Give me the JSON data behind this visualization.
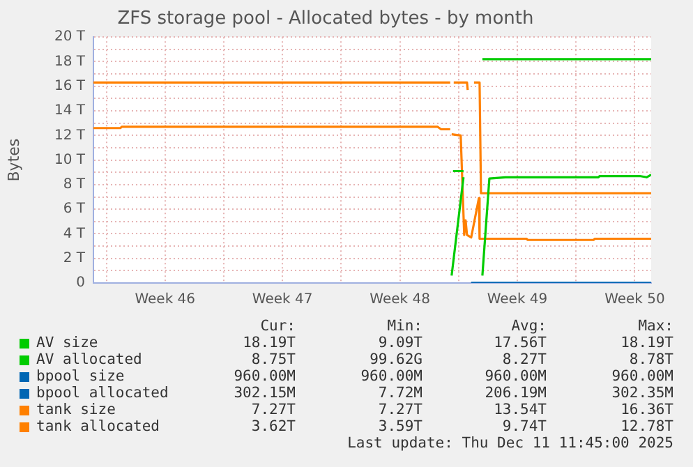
{
  "chart_data": {
    "type": "line",
    "title": "ZFS storage pool - Allocated bytes - by month",
    "ylabel": "Bytes",
    "xlim": [
      "2025-11-09T05:30",
      "2025-12-12T11:30"
    ],
    "xticks": [
      {
        "value": "2025-11-13T12:00",
        "label": "Week 46"
      },
      {
        "value": "2025-11-20T12:00",
        "label": "Week 47"
      },
      {
        "value": "2025-11-27T12:00",
        "label": "Week 48"
      },
      {
        "value": "2025-12-04T12:00",
        "label": "Week 49"
      },
      {
        "value": "2025-12-11T12:00",
        "label": "Week 50"
      },
      {
        "value": "2025-11-10T00:00",
        "label": null
      },
      {
        "value": "2025-11-17T00:00",
        "label": null
      },
      {
        "value": "2025-11-24T00:00",
        "label": null
      },
      {
        "value": "2025-12-01T00:00",
        "label": null
      },
      {
        "value": "2025-12-08T00:00",
        "label": null
      }
    ],
    "ylim": [
      0,
      20
    ],
    "yticks": [
      {
        "value": 0,
        "label": "0"
      },
      {
        "value": 2,
        "label": "2 T"
      },
      {
        "value": 4,
        "label": "4 T"
      },
      {
        "value": 6,
        "label": "6 T"
      },
      {
        "value": 8,
        "label": "8 T"
      },
      {
        "value": 10,
        "label": "10 T"
      },
      {
        "value": 12,
        "label": "12 T"
      },
      {
        "value": 14,
        "label": "14 T"
      },
      {
        "value": 16,
        "label": "16 T"
      },
      {
        "value": 18,
        "label": "18 T"
      },
      {
        "value": 20,
        "label": "20 T"
      },
      {
        "value": 1,
        "label": null
      },
      {
        "value": 3,
        "label": null
      },
      {
        "value": 5,
        "label": null
      },
      {
        "value": 7,
        "label": null
      },
      {
        "value": 9,
        "label": null
      },
      {
        "value": 11,
        "label": null
      },
      {
        "value": 13,
        "label": null
      },
      {
        "value": 15,
        "label": null
      },
      {
        "value": 17,
        "label": null
      },
      {
        "value": 19,
        "label": null
      }
    ],
    "grid": true,
    "legend": "bottom",
    "marker": "none",
    "line_style": "solid",
    "series": [
      {
        "name": "AV size",
        "color": "#00cc00",
        "x": [
          "2025-11-30T16:00",
          "2025-12-01T07:00",
          "2025-12-01T08:00",
          "2025-12-02T10:00",
          "2025-12-12T11:30"
        ],
        "values": [
          9.1,
          9.1,
          null,
          18.2,
          18.2
        ]
      },
      {
        "name": "AV allocated",
        "color": "#00cc00",
        "x": [
          "2025-11-30T14:00",
          "2025-12-01T07:00",
          "2025-12-01T08:00",
          "2025-12-02T10:00",
          "2025-12-02T20:00",
          "2025-12-03T19:00",
          "2025-12-09T08:00",
          "2025-12-09T10:00",
          "2025-12-11T19:00",
          "2025-12-12T05:00",
          "2025-12-12T11:30"
        ],
        "values": [
          0.6,
          8.6,
          null,
          0.6,
          8.5,
          8.6,
          8.6,
          8.7,
          8.7,
          8.6,
          8.8
        ]
      },
      {
        "name": "bpool size",
        "color": "#0066b3",
        "x": [
          "2025-12-01T18:00",
          "2025-12-12T11:30"
        ],
        "values": [
          0,
          0
        ]
      },
      {
        "name": "bpool allocated",
        "color": "#0066b3",
        "x": [
          "2025-12-01T18:00",
          "2025-12-12T11:30"
        ],
        "values": [
          0,
          0
        ]
      },
      {
        "name": "tank size",
        "color": "#ff8000",
        "x": [
          "2025-11-09T05:30",
          "2025-11-30T12:00",
          "2025-11-30T14:00",
          "2025-11-30T17:00",
          "2025-12-01T12:00",
          "2025-12-01T13:00",
          "2025-12-01T15:00",
          "2025-12-01T22:00",
          "2025-12-02T06:00",
          "2025-12-02T08:00",
          "2025-12-12T11:30"
        ],
        "values": [
          16.3,
          16.3,
          null,
          16.3,
          16.3,
          15.7,
          null,
          16.3,
          16.3,
          7.3,
          7.3
        ]
      },
      {
        "name": "tank allocated",
        "color": "#ff8000",
        "x": [
          "2025-11-09T05:30",
          "2025-11-10T20:00",
          "2025-11-10T22:00",
          "2025-11-29T18:00",
          "2025-11-29T23:00",
          "2025-11-30T12:00",
          "2025-11-30T13:00",
          "2025-11-30T14:00",
          "2025-12-01T03:00",
          "2025-12-01T08:00",
          "2025-12-01T10:00",
          "2025-12-01T12:00",
          "2025-12-01T18:00",
          "2025-12-02T05:00",
          "2025-12-02T06:00",
          "2025-12-05T01:00",
          "2025-12-05T03:00",
          "2025-12-09T01:00",
          "2025-12-09T03:00",
          "2025-12-12T11:30"
        ],
        "values": [
          12.6,
          12.6,
          12.7,
          12.7,
          12.5,
          12.5,
          null,
          12.1,
          12.0,
          3.9,
          5.1,
          3.9,
          3.7,
          6.9,
          3.6,
          3.6,
          3.5,
          3.5,
          3.6,
          3.6
        ]
      }
    ],
    "annotations": [
      "Cur:",
      "Min:",
      "Avg:",
      "Max:",
      "18.19T",
      "9.09T",
      "17.56T",
      "18.19T",
      "8.75T",
      "99.62G",
      "8.27T",
      "8.78T",
      "960.00M",
      "960.00M",
      "960.00M",
      "960.00M",
      "302.15M",
      "7.72M",
      "206.19M",
      "302.35M",
      "7.27T",
      "7.27T",
      "13.54T",
      "16.36T",
      "3.62T",
      "3.59T",
      "9.74T",
      "12.78T",
      "Last update: Thu Dec 11 11:45:00 2025"
    ]
  }
}
